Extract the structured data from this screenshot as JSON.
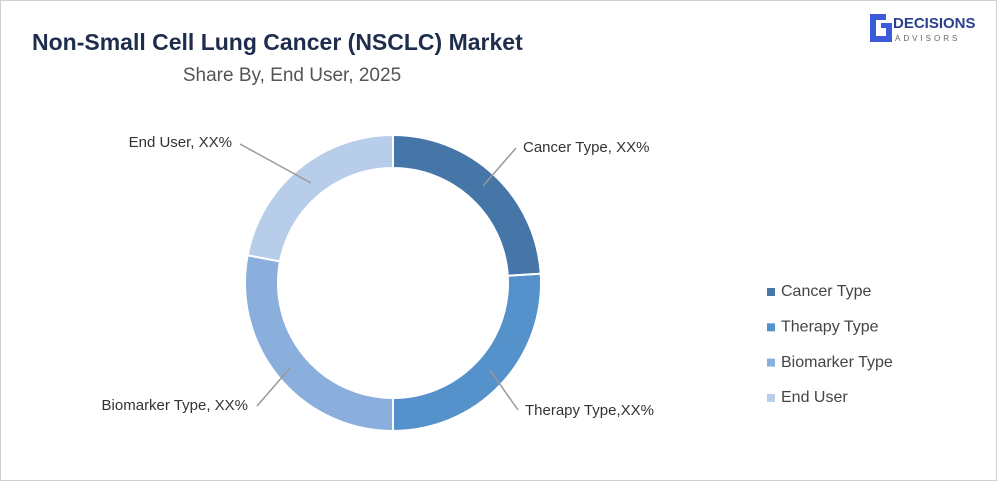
{
  "chart_data": {
    "type": "donut",
    "title": "Non-Small Cell Lung Cancer (NSCLC) Market",
    "subtitle": "Share By, End User, 2025",
    "categories": [
      "Cancer Type",
      "Therapy Type",
      "Biomarker Type",
      "End User"
    ],
    "values": [
      24,
      26,
      28,
      22
    ],
    "value_labels": [
      "Cancer Type, XX%",
      "Therapy Type,XX%",
      "Biomarker Type, XX%",
      "End User, XX%"
    ],
    "colors": [
      "#4675a8",
      "#5592cc",
      "#8aafdd",
      "#b8cde9"
    ],
    "legend": "right"
  },
  "logo": {
    "name": "DECISIONS",
    "tagline": "ADVISORS"
  }
}
